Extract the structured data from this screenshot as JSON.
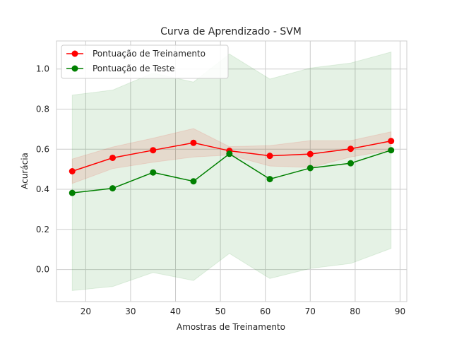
{
  "chart_data": {
    "type": "line",
    "title": "Curva de Aprendizado - SVM",
    "xlabel": "Amostras de Treinamento",
    "ylabel": "Acurácia",
    "xlim": [
      13.5,
      91.5
    ],
    "ylim": [
      -0.16,
      1.14
    ],
    "xticks": [
      20,
      30,
      40,
      50,
      60,
      70,
      80,
      90
    ],
    "yticks": [
      0.0,
      0.2,
      0.4,
      0.6,
      0.8,
      1.0
    ],
    "grid": true,
    "legend_position": "top-left",
    "x": [
      17,
      26,
      35,
      44,
      52,
      61,
      70,
      79,
      88
    ],
    "series": [
      {
        "name": "Pontuação de Treinamento",
        "color": "#ff0000",
        "values": [
          0.49,
          0.557,
          0.595,
          0.632,
          0.592,
          0.567,
          0.576,
          0.602,
          0.641
        ],
        "band_upper": [
          0.551,
          0.611,
          0.655,
          0.703,
          0.613,
          0.618,
          0.643,
          0.643,
          0.687
        ],
        "band_lower": [
          0.429,
          0.503,
          0.535,
          0.561,
          0.571,
          0.516,
          0.509,
          0.561,
          0.595
        ]
      },
      {
        "name": "Pontuação de Teste",
        "color": "#008000",
        "values": [
          0.382,
          0.405,
          0.484,
          0.44,
          0.577,
          0.451,
          0.506,
          0.53,
          0.595
        ],
        "band_upper": [
          0.87,
          0.895,
          0.98,
          0.935,
          1.075,
          0.95,
          1.005,
          1.03,
          1.085
        ],
        "band_lower": [
          -0.105,
          -0.085,
          -0.015,
          -0.055,
          0.08,
          -0.045,
          0.005,
          0.03,
          0.105
        ]
      }
    ]
  }
}
